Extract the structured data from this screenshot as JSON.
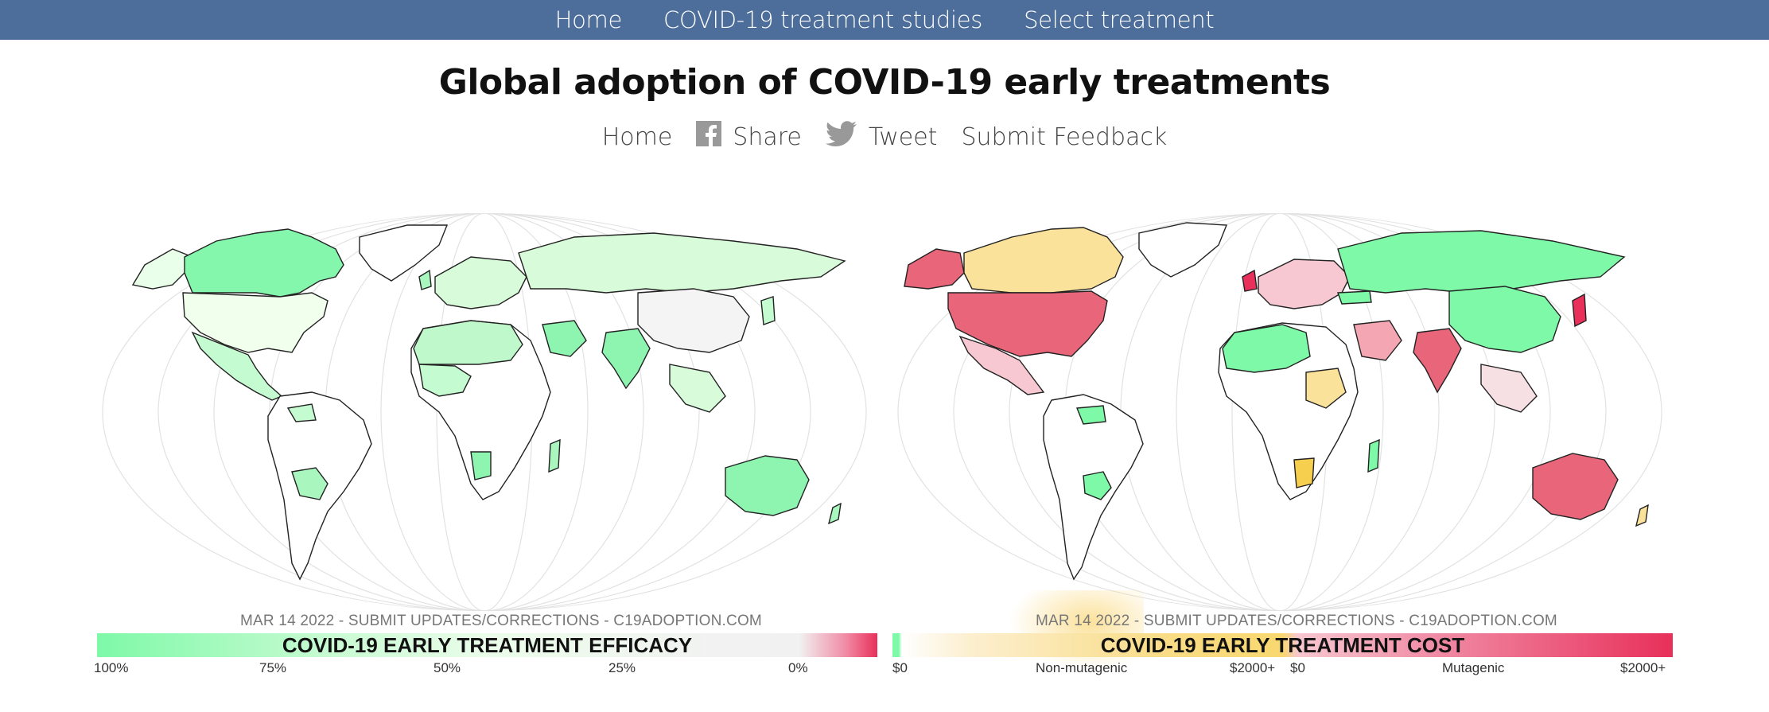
{
  "nav": {
    "items": [
      {
        "label": "Home"
      },
      {
        "label": "COVID-19 treatment studies"
      },
      {
        "label": "Select treatment"
      }
    ]
  },
  "page": {
    "title": "Global adoption of COVID-19 early treatments"
  },
  "share": {
    "home": "Home",
    "share": "Share",
    "tweet": "Tweet",
    "feedback": "Submit Feedback",
    "icons": [
      "facebook-icon",
      "twitter-icon"
    ]
  },
  "efficacy_map": {
    "credit": "MAR 14 2022 - SUBMIT UPDATES/CORRECTIONS - C19ADOPTION.COM",
    "legend_title": "COVID-19 EARLY TREATMENT EFFICACY",
    "ticks": [
      "100%",
      "75%",
      "50%",
      "25%",
      "0%"
    ],
    "colors": {
      "high": "#7ef9a8",
      "mid": "#d8fbd9",
      "low": "#f2f2f2",
      "none": "#e8305a"
    }
  },
  "cost_map": {
    "credit": "MAR 14 2022 - SUBMIT UPDATES/CORRECTIONS - C19ADOPTION.COM",
    "legend_title": "COVID-19 EARLY TREATMENT COST",
    "ticks_left": [
      "$0",
      "Non-mutagenic",
      "$2000+"
    ],
    "ticks_right": [
      "$0",
      "Mutagenic",
      "$2000+"
    ],
    "colors": {
      "free": "#7ef9a8",
      "non_mutagenic": "#f8d86e",
      "mutagenic": "#e8305a"
    }
  }
}
